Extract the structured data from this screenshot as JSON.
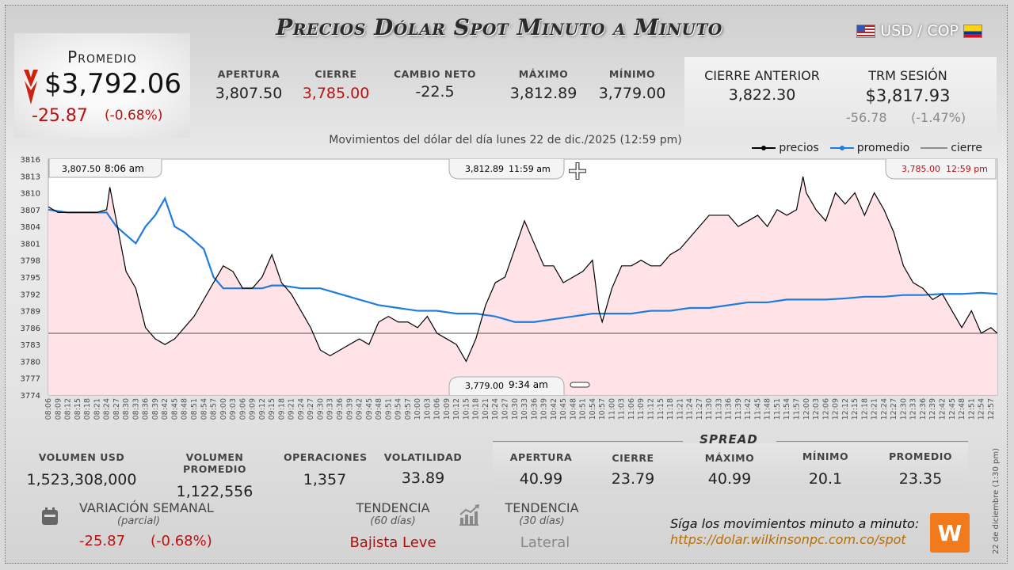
{
  "title": "Precios Dólar Spot Minuto a Minuto",
  "pair": "USD / COP",
  "promedio": {
    "label": "Promedio",
    "value": "$3,792.06",
    "change": "-25.87",
    "pct": "(-0.68%)"
  },
  "stats": [
    {
      "label": "APERTURA",
      "value": "3,807.50"
    },
    {
      "label": "CIERRE",
      "value": "3,785.00"
    },
    {
      "label": "CAMBIO NETO",
      "value": "-22.5"
    },
    {
      "label": "MÁXIMO",
      "value": "3,812.89"
    },
    {
      "label": "MÍNIMO",
      "value": "3,779.00"
    }
  ],
  "cierre_anterior": {
    "label": "CIERRE ANTERIOR",
    "value": "3,822.30"
  },
  "trm": {
    "label": "TRM SESIÓN",
    "value": "$3,817.93",
    "change": "-56.78",
    "pct": "(-1.47%)"
  },
  "subtitle": "Movimientos del dólar del día lunes 22 de dic./2025 (12:59 pm)",
  "legend": {
    "precios": "precios",
    "promedio": "promedio",
    "cierre": "cierre"
  },
  "callouts": {
    "open": {
      "price": "3,807.50",
      "time": "8:06 am"
    },
    "max": {
      "price": "3,812.89",
      "time": "11:59 am"
    },
    "close": {
      "price": "3,785.00",
      "time": "12:59 pm"
    },
    "min": {
      "price": "3,779.00",
      "time": "9:34 am"
    }
  },
  "bottom_stats": [
    {
      "label": "VOLUMEN USD",
      "value": "1,523,308,000"
    },
    {
      "label": "VOLUMEN PROMEDIO",
      "value": "1,122,556"
    },
    {
      "label": "OPERACIONES",
      "value": "1,357"
    },
    {
      "label": "VOLATILIDAD",
      "value": "33.89"
    }
  ],
  "spread": {
    "title": "SPREAD",
    "items": [
      {
        "label": "APERTURA",
        "value": "40.99"
      },
      {
        "label": "CIERRE",
        "value": "23.79"
      },
      {
        "label": "MÁXIMO",
        "value": "40.99"
      },
      {
        "label": "MÍNIMO",
        "value": "20.1"
      },
      {
        "label": "PROMEDIO",
        "value": "23.35"
      }
    ]
  },
  "variacion": {
    "label": "VARIACIÓN SEMANAL",
    "sub": "(parcial)",
    "change": "-25.87",
    "pct": "(-0.68%)"
  },
  "tendencia60": {
    "label": "TENDENCIA",
    "sub": "(60 días)",
    "value": "Bajista Leve"
  },
  "tendencia30": {
    "label": "TENDENCIA",
    "sub": "(30 días)",
    "value": "Lateral"
  },
  "cta": {
    "line1": "Síga los movimientos minuto a minuto:",
    "line2": "https://dolar.wilkinsonpc.com.co/spot"
  },
  "side_date": "22 de diciembre (1:30 pm)",
  "colors": {
    "price": "#000000",
    "average": "#1e7be0",
    "close_line": "#555555",
    "fill": "#ffe0e4",
    "red": "#bb1111"
  },
  "chart_data": {
    "type": "line",
    "ylim": [
      3774,
      3816
    ],
    "y_ticks": [
      3774,
      3777,
      3780,
      3783,
      3786,
      3789,
      3792,
      3795,
      3798,
      3801,
      3804,
      3807,
      3810,
      3813,
      3816
    ],
    "x_ticks": [
      "08:06",
      "08:09",
      "08:12",
      "08:15",
      "08:18",
      "08:21",
      "08:24",
      "08:27",
      "08:30",
      "08:33",
      "08:36",
      "08:39",
      "08:42",
      "08:45",
      "08:48",
      "08:51",
      "08:54",
      "08:57",
      "09:00",
      "09:03",
      "09:06",
      "09:09",
      "09:12",
      "09:15",
      "09:18",
      "09:21",
      "09:24",
      "09:27",
      "09:30",
      "09:33",
      "09:36",
      "09:39",
      "09:42",
      "09:45",
      "09:48",
      "09:51",
      "09:54",
      "09:57",
      "10:00",
      "10:03",
      "10:06",
      "10:09",
      "10:12",
      "10:15",
      "10:18",
      "10:21",
      "10:24",
      "10:27",
      "10:30",
      "10:33",
      "10:36",
      "10:39",
      "10:42",
      "10:45",
      "10:48",
      "10:51",
      "10:54",
      "10:57",
      "11:00",
      "11:03",
      "11:06",
      "11:09",
      "11:12",
      "11:15",
      "11:18",
      "11:21",
      "11:24",
      "11:27",
      "11:30",
      "11:33",
      "11:36",
      "11:39",
      "11:42",
      "11:45",
      "11:48",
      "11:51",
      "11:54",
      "11:57",
      "12:00",
      "12:03",
      "12:06",
      "12:09",
      "12:12",
      "12:15",
      "12:18",
      "12:21",
      "12:24",
      "12:27",
      "12:30",
      "12:33",
      "12:36",
      "12:39",
      "12:42",
      "12:45",
      "12:48",
      "12:51",
      "12:54",
      "12:57"
    ],
    "close_value": 3785.0,
    "series": [
      {
        "name": "precios",
        "x": [
          "08:06",
          "08:09",
          "08:12",
          "08:18",
          "08:21",
          "08:24",
          "08:25",
          "08:27",
          "08:30",
          "08:33",
          "08:36",
          "08:39",
          "08:42",
          "08:45",
          "08:48",
          "08:51",
          "08:54",
          "08:57",
          "09:00",
          "09:03",
          "09:06",
          "09:09",
          "09:12",
          "09:15",
          "09:18",
          "09:21",
          "09:24",
          "09:27",
          "09:30",
          "09:33",
          "09:36",
          "09:39",
          "09:42",
          "09:45",
          "09:48",
          "09:51",
          "09:54",
          "09:57",
          "10:00",
          "10:03",
          "10:06",
          "10:09",
          "10:12",
          "10:15",
          "10:18",
          "10:21",
          "10:24",
          "10:27",
          "10:30",
          "10:33",
          "10:36",
          "10:39",
          "10:42",
          "10:45",
          "10:48",
          "10:51",
          "10:54",
          "10:56",
          "10:57",
          "11:00",
          "11:03",
          "11:06",
          "11:09",
          "11:12",
          "11:15",
          "11:18",
          "11:21",
          "11:24",
          "11:27",
          "11:30",
          "11:33",
          "11:36",
          "11:39",
          "11:42",
          "11:45",
          "11:48",
          "11:51",
          "11:54",
          "11:57",
          "11:59",
          "12:00",
          "12:03",
          "12:06",
          "12:09",
          "12:12",
          "12:15",
          "12:18",
          "12:21",
          "12:24",
          "12:27",
          "12:30",
          "12:33",
          "12:36",
          "12:39",
          "12:42",
          "12:45",
          "12:48",
          "12:51",
          "12:54",
          "12:57",
          "12:59"
        ],
        "values": [
          3807.5,
          3806.5,
          3806.5,
          3806.5,
          3806.5,
          3807,
          3811,
          3805,
          3796,
          3793,
          3786,
          3784,
          3783,
          3784,
          3786,
          3788,
          3791,
          3794,
          3797,
          3796,
          3793,
          3793,
          3795,
          3799,
          3794,
          3792,
          3789,
          3786,
          3782,
          3781,
          3782,
          3783,
          3784,
          3783,
          3787,
          3788,
          3787,
          3787,
          3786,
          3788,
          3785,
          3784,
          3783,
          3780,
          3784,
          3790,
          3794,
          3795,
          3800,
          3805,
          3801,
          3797,
          3797,
          3794,
          3795,
          3796,
          3798,
          3789,
          3787,
          3793,
          3797,
          3797,
          3798,
          3797,
          3797,
          3799,
          3800,
          3802,
          3804,
          3806,
          3806,
          3806,
          3804,
          3805,
          3806,
          3804,
          3807,
          3806,
          3807,
          3812.89,
          3810,
          3807,
          3805,
          3810,
          3808,
          3810,
          3806,
          3810,
          3807,
          3803,
          3797,
          3794,
          3793,
          3791,
          3792,
          3789,
          3786,
          3789,
          3785,
          3786,
          3785
        ]
      },
      {
        "name": "promedio",
        "x": [
          "08:06",
          "08:12",
          "08:18",
          "08:21",
          "08:24",
          "08:27",
          "08:33",
          "08:36",
          "08:39",
          "08:42",
          "08:45",
          "08:48",
          "08:54",
          "08:57",
          "09:00",
          "09:06",
          "09:12",
          "09:15",
          "09:18",
          "09:24",
          "09:30",
          "09:36",
          "09:42",
          "09:48",
          "09:54",
          "10:00",
          "10:06",
          "10:12",
          "10:18",
          "10:24",
          "10:27",
          "10:30",
          "10:36",
          "10:42",
          "10:48",
          "10:54",
          "11:00",
          "11:06",
          "11:12",
          "11:18",
          "11:24",
          "11:30",
          "11:36",
          "11:42",
          "11:48",
          "11:54",
          "12:00",
          "12:06",
          "12:12",
          "12:18",
          "12:24",
          "12:30",
          "12:36",
          "12:42",
          "12:48",
          "12:54",
          "12:59"
        ],
        "values": [
          3807,
          3806.5,
          3806.5,
          3806.5,
          3806.5,
          3804,
          3801,
          3804,
          3806,
          3809,
          3804,
          3803,
          3800,
          3795,
          3793,
          3793,
          3793,
          3793.5,
          3793.5,
          3793,
          3793,
          3792,
          3791,
          3790,
          3789.5,
          3789,
          3789,
          3788.5,
          3788.5,
          3788,
          3787.5,
          3787,
          3787,
          3787.5,
          3788,
          3788.5,
          3788.5,
          3788.5,
          3789,
          3789,
          3789.5,
          3789.5,
          3790,
          3790.5,
          3790.5,
          3791,
          3791,
          3791,
          3791.2,
          3791.5,
          3791.5,
          3791.8,
          3791.8,
          3792,
          3792,
          3792.2,
          3792
        ]
      }
    ]
  }
}
